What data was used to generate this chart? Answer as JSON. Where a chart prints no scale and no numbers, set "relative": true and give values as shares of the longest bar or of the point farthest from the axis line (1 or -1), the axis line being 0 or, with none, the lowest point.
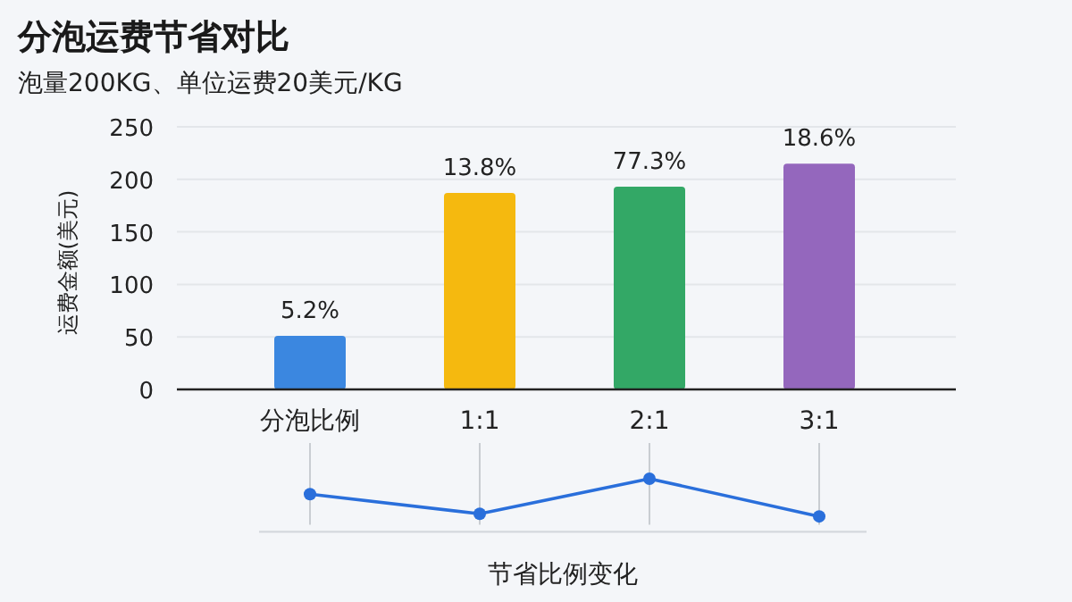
{
  "chart_data": [
    {
      "type": "bar",
      "title": "分泡运费节省对比",
      "subtitle": "泡量200KG、单位运费20美元/KG",
      "ylabel": "运费金额(美元)",
      "categories": [
        "分泡比例",
        "1:1",
        "2:1",
        "3:1"
      ],
      "values": [
        51,
        187,
        193,
        215
      ],
      "colors": [
        "#3b87e0",
        "#f5b90f",
        "#33a866",
        "#9467bd"
      ],
      "annotations": [
        {
          "text": "5.2%",
          "x": "分泡比例",
          "y": 51
        },
        {
          "text": "13.8%",
          "x": "1:1",
          "y": 187
        },
        {
          "text": "77.3%",
          "x": "2:1",
          "y": 193
        },
        {
          "text": "18.6%",
          "x": "3:1",
          "y": 215
        }
      ],
      "ylim": [
        0,
        250
      ],
      "yticks": [
        0,
        50,
        100,
        150,
        200,
        250
      ],
      "grid": "y"
    },
    {
      "type": "line",
      "xlabel": "节省比例变化",
      "categories": [
        null,
        null,
        null,
        null
      ],
      "values": [
        0.71,
        0.34,
        1,
        0.29
      ],
      "color": "#2a6fdb",
      "relative": true,
      "marker": "circle",
      "grid": "x"
    }
  ]
}
